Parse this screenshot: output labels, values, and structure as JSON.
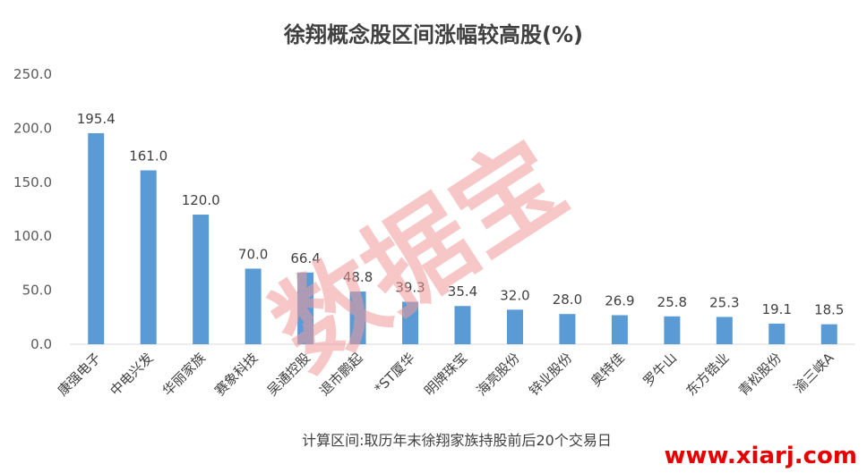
{
  "chart_data": {
    "type": "bar",
    "title": "徐翔概念股区间涨幅较高股(%)",
    "categories": [
      "康强电子",
      "中电兴发",
      "华丽家族",
      "赛象科技",
      "吴通控股",
      "退市鹏起",
      "*ST厦华",
      "明牌珠宝",
      "海亮股份",
      "锌业股份",
      "奥特佳",
      "罗牛山",
      "东方锆业",
      "青松股份",
      "渝三峡A"
    ],
    "values": [
      195.4,
      161.0,
      120.0,
      70.0,
      66.4,
      48.8,
      39.3,
      35.4,
      32.0,
      28.0,
      26.9,
      25.8,
      25.3,
      19.1,
      18.5
    ],
    "value_labels": [
      "195.4",
      "161.0",
      "120.0",
      "70.0",
      "66.4",
      "48.8",
      "39.3",
      "35.4",
      "32.0",
      "28.0",
      "26.9",
      "25.8",
      "25.3",
      "19.1",
      "18.5"
    ],
    "yticks": [
      "0.0",
      "50.0",
      "100.0",
      "150.0",
      "200.0",
      "250.0"
    ],
    "ylim": [
      0,
      250
    ],
    "grid": false,
    "bar_color": "#5b9bd5",
    "note": "计算区间:取历年末徐翔家族持股前后20个交易日"
  },
  "watermark": "数据宝",
  "site_label": "www.xiarj.com",
  "colors": {
    "site": "#e60000",
    "watermark": "#f19a9a"
  }
}
